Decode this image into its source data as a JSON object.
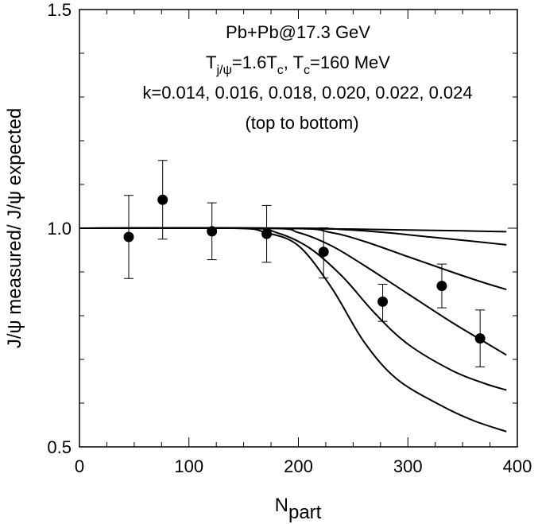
{
  "chart_data": {
    "type": "line",
    "title": "",
    "xlabel": {
      "main": "N",
      "sub": "part"
    },
    "ylabel": "J/ψ measured/ J/ψ expected",
    "xlim": [
      0,
      400
    ],
    "ylim": [
      0.5,
      1.5
    ],
    "xticks": [
      0,
      100,
      200,
      300,
      400
    ],
    "xtick_labels": [
      "0",
      "100",
      "200",
      "300",
      "400"
    ],
    "yticks": [
      0.5,
      1.0,
      1.5
    ],
    "ytick_labels": [
      "0.5",
      "1.0",
      "1.5"
    ],
    "x_minor_step": 25,
    "y_minor_step": 0.1,
    "annotations": {
      "line1": "Pb+Pb@17.3 GeV",
      "line2": {
        "t": "T",
        "t_sub": "j/ψ",
        "t_val": "=1.6T",
        "c_sub": "c",
        "sep": ", T",
        "c_sub2": "c",
        "tc_val": "=160 MeV"
      },
      "line3": "k=0.014, 0.016, 0.018, 0.020, 0.022, 0.024",
      "line4": "(top to bottom)"
    },
    "series": [
      {
        "name": "k=0.014",
        "x": [
          0,
          150,
          200,
          250,
          300,
          350,
          390
        ],
        "y": [
          1.0,
          1.0,
          0.999,
          0.998,
          0.996,
          0.994,
          0.992
        ]
      },
      {
        "name": "k=0.016",
        "x": [
          0,
          200,
          240,
          280,
          320,
          360,
          390
        ],
        "y": [
          1.0,
          1.0,
          0.997,
          0.99,
          0.98,
          0.97,
          0.962
        ]
      },
      {
        "name": "k=0.018",
        "x": [
          0,
          190,
          230,
          260,
          300,
          340,
          370,
          390
        ],
        "y": [
          1.0,
          1.0,
          0.99,
          0.97,
          0.935,
          0.9,
          0.875,
          0.86
        ]
      },
      {
        "name": "k=0.020",
        "x": [
          0,
          170,
          200,
          230,
          260,
          300,
          340,
          370,
          390
        ],
        "y": [
          1.0,
          1.0,
          0.99,
          0.96,
          0.915,
          0.85,
          0.785,
          0.74,
          0.71
        ]
      },
      {
        "name": "k=0.022",
        "x": [
          0,
          150,
          180,
          210,
          240,
          270,
          300,
          340,
          370,
          390
        ],
        "y": [
          1.0,
          1.0,
          0.99,
          0.955,
          0.89,
          0.805,
          0.735,
          0.675,
          0.645,
          0.63
        ]
      },
      {
        "name": "k=0.024",
        "x": [
          0,
          140,
          170,
          200,
          230,
          260,
          290,
          330,
          360,
          390
        ],
        "y": [
          1.0,
          1.0,
          0.99,
          0.96,
          0.865,
          0.74,
          0.655,
          0.595,
          0.56,
          0.535
        ]
      }
    ],
    "data_points": {
      "name": "measured",
      "x": [
        45,
        76,
        121,
        171,
        223,
        277,
        331,
        366
      ],
      "y": [
        0.98,
        1.065,
        0.993,
        0.987,
        0.946,
        0.832,
        0.868,
        0.748
      ],
      "err_low": [
        0.095,
        0.09,
        0.065,
        0.065,
        0.06,
        0.045,
        0.05,
        0.065
      ],
      "err_high": [
        0.095,
        0.09,
        0.065,
        0.065,
        0.055,
        0.04,
        0.05,
        0.065
      ]
    }
  }
}
